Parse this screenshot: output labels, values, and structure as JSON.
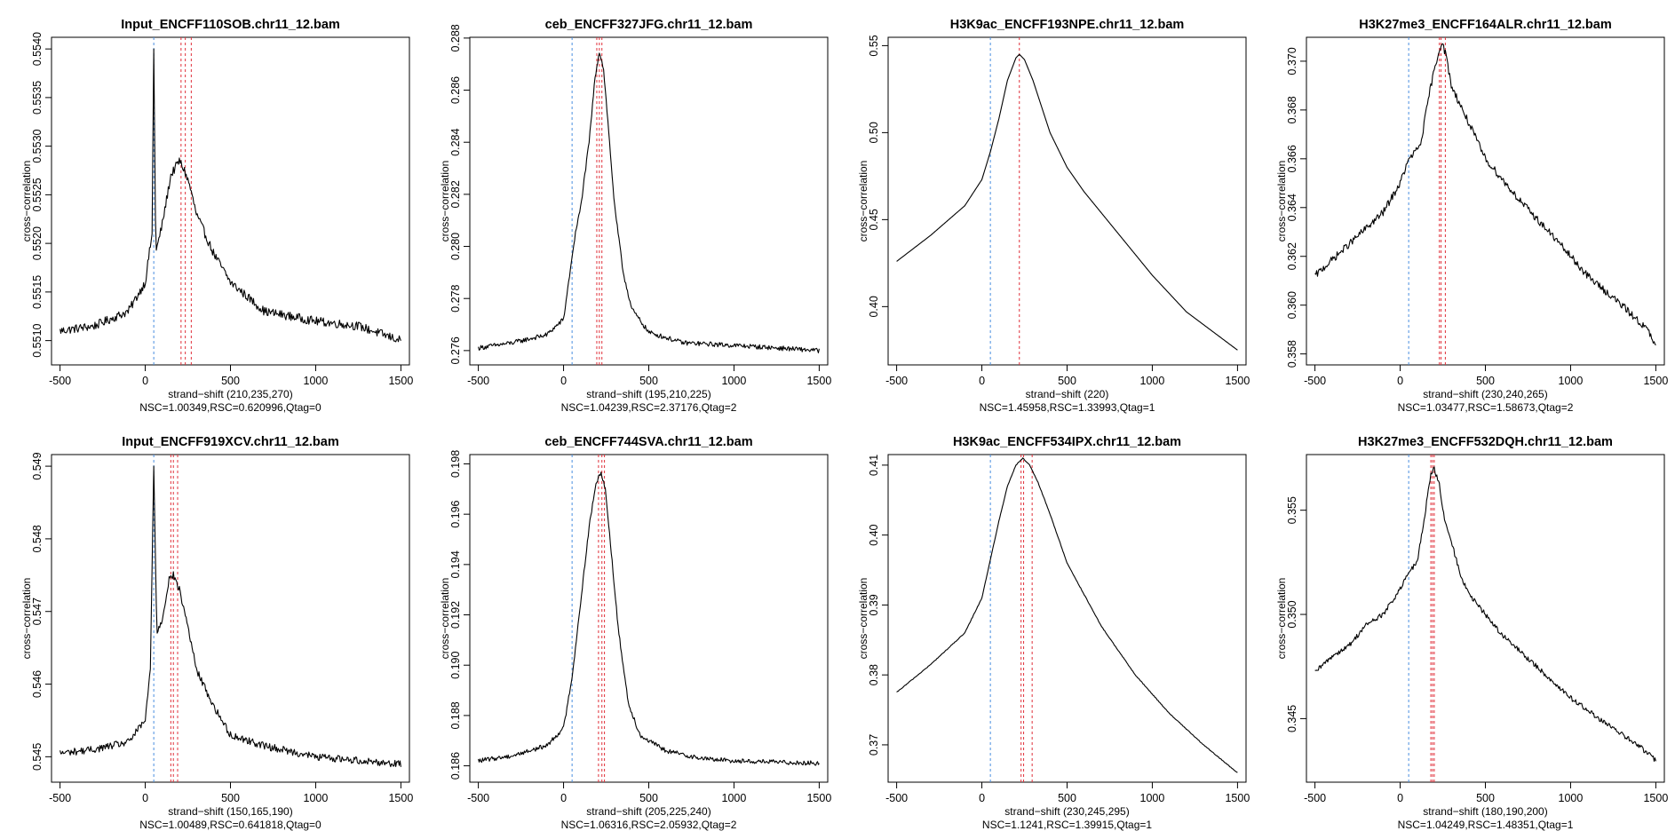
{
  "colors": {
    "curve": "#000000",
    "blue_line": "#4a8fe0",
    "red_line": "#e0303a",
    "axis": "#000000"
  },
  "axis_text": {
    "ylabel": "cross−correlation",
    "xlabel_prefix": "strand−shift "
  },
  "chart_data": [
    {
      "type": "line",
      "title": "Input_ENCFF110SOB.chr11_12.bam",
      "xlabel": "strand−shift (210,235,270)",
      "stats": "NSC=1.00349,RSC=0.620996,Qtag=0",
      "ylabel": "cross−correlation",
      "xlim": [
        -550,
        1550
      ],
      "ylim": [
        0.55075,
        0.55412
      ],
      "xticks": [
        "-500",
        "0",
        "500",
        "1000",
        "1500"
      ],
      "xtick_values": [
        -500,
        0,
        500,
        1000,
        1500
      ],
      "yticks": [
        "0.5510",
        "0.5515",
        "0.5520",
        "0.5525",
        "0.5530",
        "0.5535",
        "0.5540"
      ],
      "ytick_values": [
        0.551,
        0.5515,
        0.552,
        0.5525,
        0.553,
        0.5535,
        0.554
      ],
      "blue_x": [
        50
      ],
      "red_x": [
        210,
        235,
        270
      ],
      "curve": {
        "x": [
          -500,
          -300,
          -100,
          0,
          40,
          50,
          62,
          100,
          150,
          200,
          230,
          260,
          300,
          400,
          500,
          700,
          1000,
          1250,
          1500
        ],
        "y": [
          0.5511,
          0.55115,
          0.5513,
          0.5516,
          0.5521,
          0.554,
          0.5519,
          0.5522,
          0.5527,
          0.55285,
          0.55275,
          0.5526,
          0.5523,
          0.5519,
          0.5516,
          0.5513,
          0.5512,
          0.55115,
          0.551
        ],
        "noise": 4.5e-05
      }
    },
    {
      "type": "line",
      "title": "ceb_ENCFF327JFG.chr11_12.bam",
      "xlabel": "strand−shift (195,210,225)",
      "stats": "NSC=1.04239,RSC=2.37176,Qtag=2",
      "ylabel": "cross−correlation",
      "xlim": [
        -550,
        1550
      ],
      "ylim": [
        0.27545,
        0.28803
      ],
      "xticks": [
        "-500",
        "0",
        "500",
        "1000",
        "1500"
      ],
      "xtick_values": [
        -500,
        0,
        500,
        1000,
        1500
      ],
      "yticks": [
        "0.276",
        "0.278",
        "0.280",
        "0.282",
        "0.284",
        "0.286",
        "0.288"
      ],
      "ytick_values": [
        0.276,
        0.278,
        0.28,
        0.282,
        0.284,
        0.286,
        0.288
      ],
      "blue_x": [
        50
      ],
      "red_x": [
        195,
        210,
        225
      ],
      "curve": {
        "x": [
          -500,
          -300,
          -100,
          0,
          50,
          70,
          100,
          150,
          185,
          210,
          235,
          260,
          300,
          350,
          400,
          500,
          700,
          1000,
          1500
        ],
        "y": [
          0.2761,
          0.2763,
          0.2766,
          0.2772,
          0.2796,
          0.2805,
          0.2815,
          0.284,
          0.2865,
          0.2875,
          0.2868,
          0.2848,
          0.2815,
          0.279,
          0.2776,
          0.2767,
          0.2763,
          0.2762,
          0.276
        ],
        "noise": 9e-05
      }
    },
    {
      "type": "line",
      "title": "H3K9ac_ENCFF193NPE.chr11_12.bam",
      "xlabel": "strand−shift (220)",
      "stats": "NSC=1.45958,RSC=1.33993,Qtag=1",
      "ylabel": "cross−correlation",
      "xlim": [
        -550,
        1550
      ],
      "ylim": [
        0.3665,
        0.5548
      ],
      "xticks": [
        "-500",
        "0",
        "500",
        "1000",
        "1500"
      ],
      "xtick_values": [
        -500,
        0,
        500,
        1000,
        1500
      ],
      "yticks": [
        "0.40",
        "0.45",
        "0.50",
        "0.55"
      ],
      "ytick_values": [
        0.4,
        0.45,
        0.5,
        0.55
      ],
      "blue_x": [
        50
      ],
      "red_x": [
        220
      ],
      "curve": {
        "x": [
          -500,
          -300,
          -100,
          0,
          50,
          100,
          150,
          200,
          220,
          250,
          300,
          400,
          500,
          600,
          800,
          1000,
          1200,
          1500
        ],
        "y": [
          0.426,
          0.441,
          0.458,
          0.473,
          0.489,
          0.508,
          0.53,
          0.543,
          0.545,
          0.542,
          0.53,
          0.5,
          0.48,
          0.466,
          0.442,
          0.418,
          0.397,
          0.375
        ],
        "noise": 0
      }
    },
    {
      "type": "line",
      "title": "H3K27me3_ENCFF164ALR.chr11_12.bam",
      "xlabel": "strand−shift (230,240,265)",
      "stats": "NSC=1.03477,RSC=1.58673,Qtag=2",
      "ylabel": "cross−correlation",
      "xlim": [
        -550,
        1550
      ],
      "ylim": [
        0.35755,
        0.37098
      ],
      "xticks": [
        "-500",
        "0",
        "500",
        "1000",
        "1500"
      ],
      "xtick_values": [
        -500,
        0,
        500,
        1000,
        1500
      ],
      "yticks": [
        "0.358",
        "0.360",
        "0.362",
        "0.364",
        "0.366",
        "0.368",
        "0.370"
      ],
      "ytick_values": [
        0.358,
        0.36,
        0.362,
        0.364,
        0.366,
        0.368,
        0.37
      ],
      "blue_x": [
        50
      ],
      "red_x": [
        230,
        240,
        265
      ],
      "curve": {
        "x": [
          -500,
          -300,
          -100,
          0,
          50,
          80,
          120,
          180,
          230,
          245,
          270,
          300,
          400,
          500,
          700,
          900,
          1100,
          1300,
          1450,
          1500
        ],
        "y": [
          0.3612,
          0.3625,
          0.3638,
          0.365,
          0.366,
          0.3662,
          0.3666,
          0.369,
          0.3705,
          0.3708,
          0.3702,
          0.369,
          0.3675,
          0.366,
          0.3643,
          0.3628,
          0.3612,
          0.36,
          0.359,
          0.3583
        ],
        "noise": 0.00015
      }
    },
    {
      "type": "line",
      "title": "Input_ENCFF919XCV.chr11_12.bam",
      "xlabel": "strand−shift (150,165,190)",
      "stats": "NSC=1.00489,RSC=0.641818,Qtag=0",
      "ylabel": "cross−correlation",
      "xlim": [
        -550,
        1550
      ],
      "ylim": [
        0.54465,
        0.54916
      ],
      "xticks": [
        "-500",
        "0",
        "500",
        "1000",
        "1500"
      ],
      "xtick_values": [
        -500,
        0,
        500,
        1000,
        1500
      ],
      "yticks": [
        "0.545",
        "0.546",
        "0.547",
        "0.548",
        "0.549"
      ],
      "ytick_values": [
        0.545,
        0.546,
        0.547,
        0.548,
        0.549
      ],
      "blue_x": [
        50
      ],
      "red_x": [
        150,
        165,
        190
      ],
      "curve": {
        "x": [
          -500,
          -300,
          -100,
          0,
          30,
          50,
          68,
          100,
          140,
          165,
          200,
          250,
          300,
          400,
          500,
          700,
          1000,
          1500
        ],
        "y": [
          0.54505,
          0.5451,
          0.5452,
          0.5455,
          0.5462,
          0.549,
          0.5467,
          0.5469,
          0.54745,
          0.5475,
          0.5473,
          0.5468,
          0.5462,
          0.5457,
          0.5453,
          0.54515,
          0.545,
          0.5449
        ],
        "noise": 5e-05
      }
    },
    {
      "type": "line",
      "title": "ceb_ENCFF744SVA.chr11_12.bam",
      "xlabel": "strand−shift (205,225,240)",
      "stats": "NSC=1.06316,RSC=2.05932,Qtag=2",
      "ylabel": "cross−correlation",
      "xlim": [
        -550,
        1550
      ],
      "ylim": [
        0.18535,
        0.19837
      ],
      "xticks": [
        "-500",
        "0",
        "500",
        "1000",
        "1500"
      ],
      "xtick_values": [
        -500,
        0,
        500,
        1000,
        1500
      ],
      "yticks": [
        "0.186",
        "0.188",
        "0.190",
        "0.192",
        "0.194",
        "0.196",
        "0.198"
      ],
      "ytick_values": [
        0.186,
        0.188,
        0.19,
        0.192,
        0.194,
        0.196,
        0.198
      ],
      "blue_x": [
        50
      ],
      "red_x": [
        205,
        225,
        240
      ],
      "curve": {
        "x": [
          -500,
          -300,
          -100,
          0,
          50,
          100,
          150,
          190,
          220,
          245,
          280,
          320,
          380,
          450,
          600,
          800,
          1000,
          1500
        ],
        "y": [
          0.1862,
          0.1864,
          0.1868,
          0.1875,
          0.1895,
          0.1925,
          0.1955,
          0.1972,
          0.1977,
          0.197,
          0.1945,
          0.1915,
          0.1885,
          0.1872,
          0.1866,
          0.1863,
          0.1862,
          0.1861
        ],
        "noise": 9e-05
      }
    },
    {
      "type": "line",
      "title": "H3K9ac_ENCFF534IPX.chr11_12.bam",
      "xlabel": "strand−shift (230,245,295)",
      "stats": "NSC=1.1241,RSC=1.39915,Qtag=1",
      "ylabel": "cross−correlation",
      "xlim": [
        -550,
        1550
      ],
      "ylim": [
        0.36466,
        0.41151
      ],
      "xticks": [
        "-500",
        "0",
        "500",
        "1000",
        "1500"
      ],
      "xtick_values": [
        -500,
        0,
        500,
        1000,
        1500
      ],
      "yticks": [
        "0.37",
        "0.38",
        "0.39",
        "0.40",
        "0.41"
      ],
      "ytick_values": [
        0.37,
        0.38,
        0.39,
        0.4,
        0.41
      ],
      "blue_x": [
        50
      ],
      "red_x": [
        230,
        245,
        295
      ],
      "curve": {
        "x": [
          -500,
          -300,
          -100,
          0,
          50,
          100,
          150,
          200,
          240,
          280,
          330,
          400,
          500,
          700,
          900,
          1100,
          1300,
          1500
        ],
        "y": [
          0.3775,
          0.3815,
          0.386,
          0.391,
          0.3965,
          0.402,
          0.407,
          0.41,
          0.411,
          0.41,
          0.4075,
          0.403,
          0.396,
          0.387,
          0.38,
          0.3745,
          0.37,
          0.366
        ],
        "noise": 5e-05
      }
    },
    {
      "type": "line",
      "title": "H3K27me3_ENCFF532DQH.chr11_12.bam",
      "xlabel": "strand−shift (180,190,200)",
      "stats": "NSC=1.04249,RSC=1.48351,Qtag=1",
      "ylabel": "cross−correlation",
      "xlim": [
        -550,
        1550
      ],
      "ylim": [
        0.34195,
        0.35767
      ],
      "xticks": [
        "-500",
        "0",
        "500",
        "1000",
        "1500"
      ],
      "xtick_values": [
        -500,
        0,
        500,
        1000,
        1500
      ],
      "yticks": [
        "0.345",
        "0.350",
        "0.355"
      ],
      "ytick_values": [
        0.345,
        0.35,
        0.355
      ],
      "blue_x": [
        50
      ],
      "red_x": [
        180,
        190,
        200
      ],
      "curve": {
        "x": [
          -500,
          -400,
          -300,
          -200,
          -100,
          0,
          50,
          100,
          140,
          180,
          200,
          230,
          260,
          300,
          350,
          400,
          500,
          600,
          800,
          1000,
          1200,
          1400,
          1500
        ],
        "y": [
          0.3472,
          0.348,
          0.3485,
          0.3495,
          0.35,
          0.3512,
          0.352,
          0.3525,
          0.3545,
          0.3568,
          0.357,
          0.3562,
          0.3545,
          0.3535,
          0.352,
          0.351,
          0.35,
          0.349,
          0.3475,
          0.346,
          0.3448,
          0.3437,
          0.343
        ],
        "noise": 0.00012
      }
    }
  ]
}
